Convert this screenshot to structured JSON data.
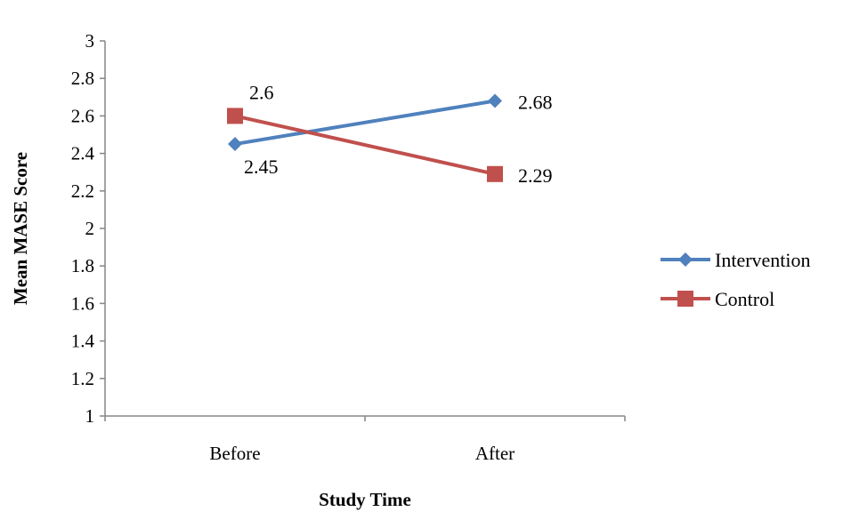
{
  "chart_data": {
    "type": "line",
    "categories": [
      "Before",
      "After"
    ],
    "series": [
      {
        "name": "Intervention",
        "values": [
          2.45,
          2.68
        ],
        "data_labels": [
          "2.45",
          "2.68"
        ],
        "color": "#4F81BD",
        "marker": "diamond"
      },
      {
        "name": "Control",
        "values": [
          2.6,
          2.29
        ],
        "data_labels": [
          "2.6",
          "2.29"
        ],
        "color": "#C0504D",
        "marker": "square"
      }
    ],
    "xlabel": "Study Time",
    "ylabel": "Mean MASE Score",
    "ylim": [
      1,
      3
    ],
    "yticks": [
      "1",
      "1.2",
      "1.4",
      "1.6",
      "1.8",
      "2",
      "2.2",
      "2.4",
      "2.6",
      "2.8",
      "3"
    ],
    "grid": false,
    "legend": "right"
  }
}
